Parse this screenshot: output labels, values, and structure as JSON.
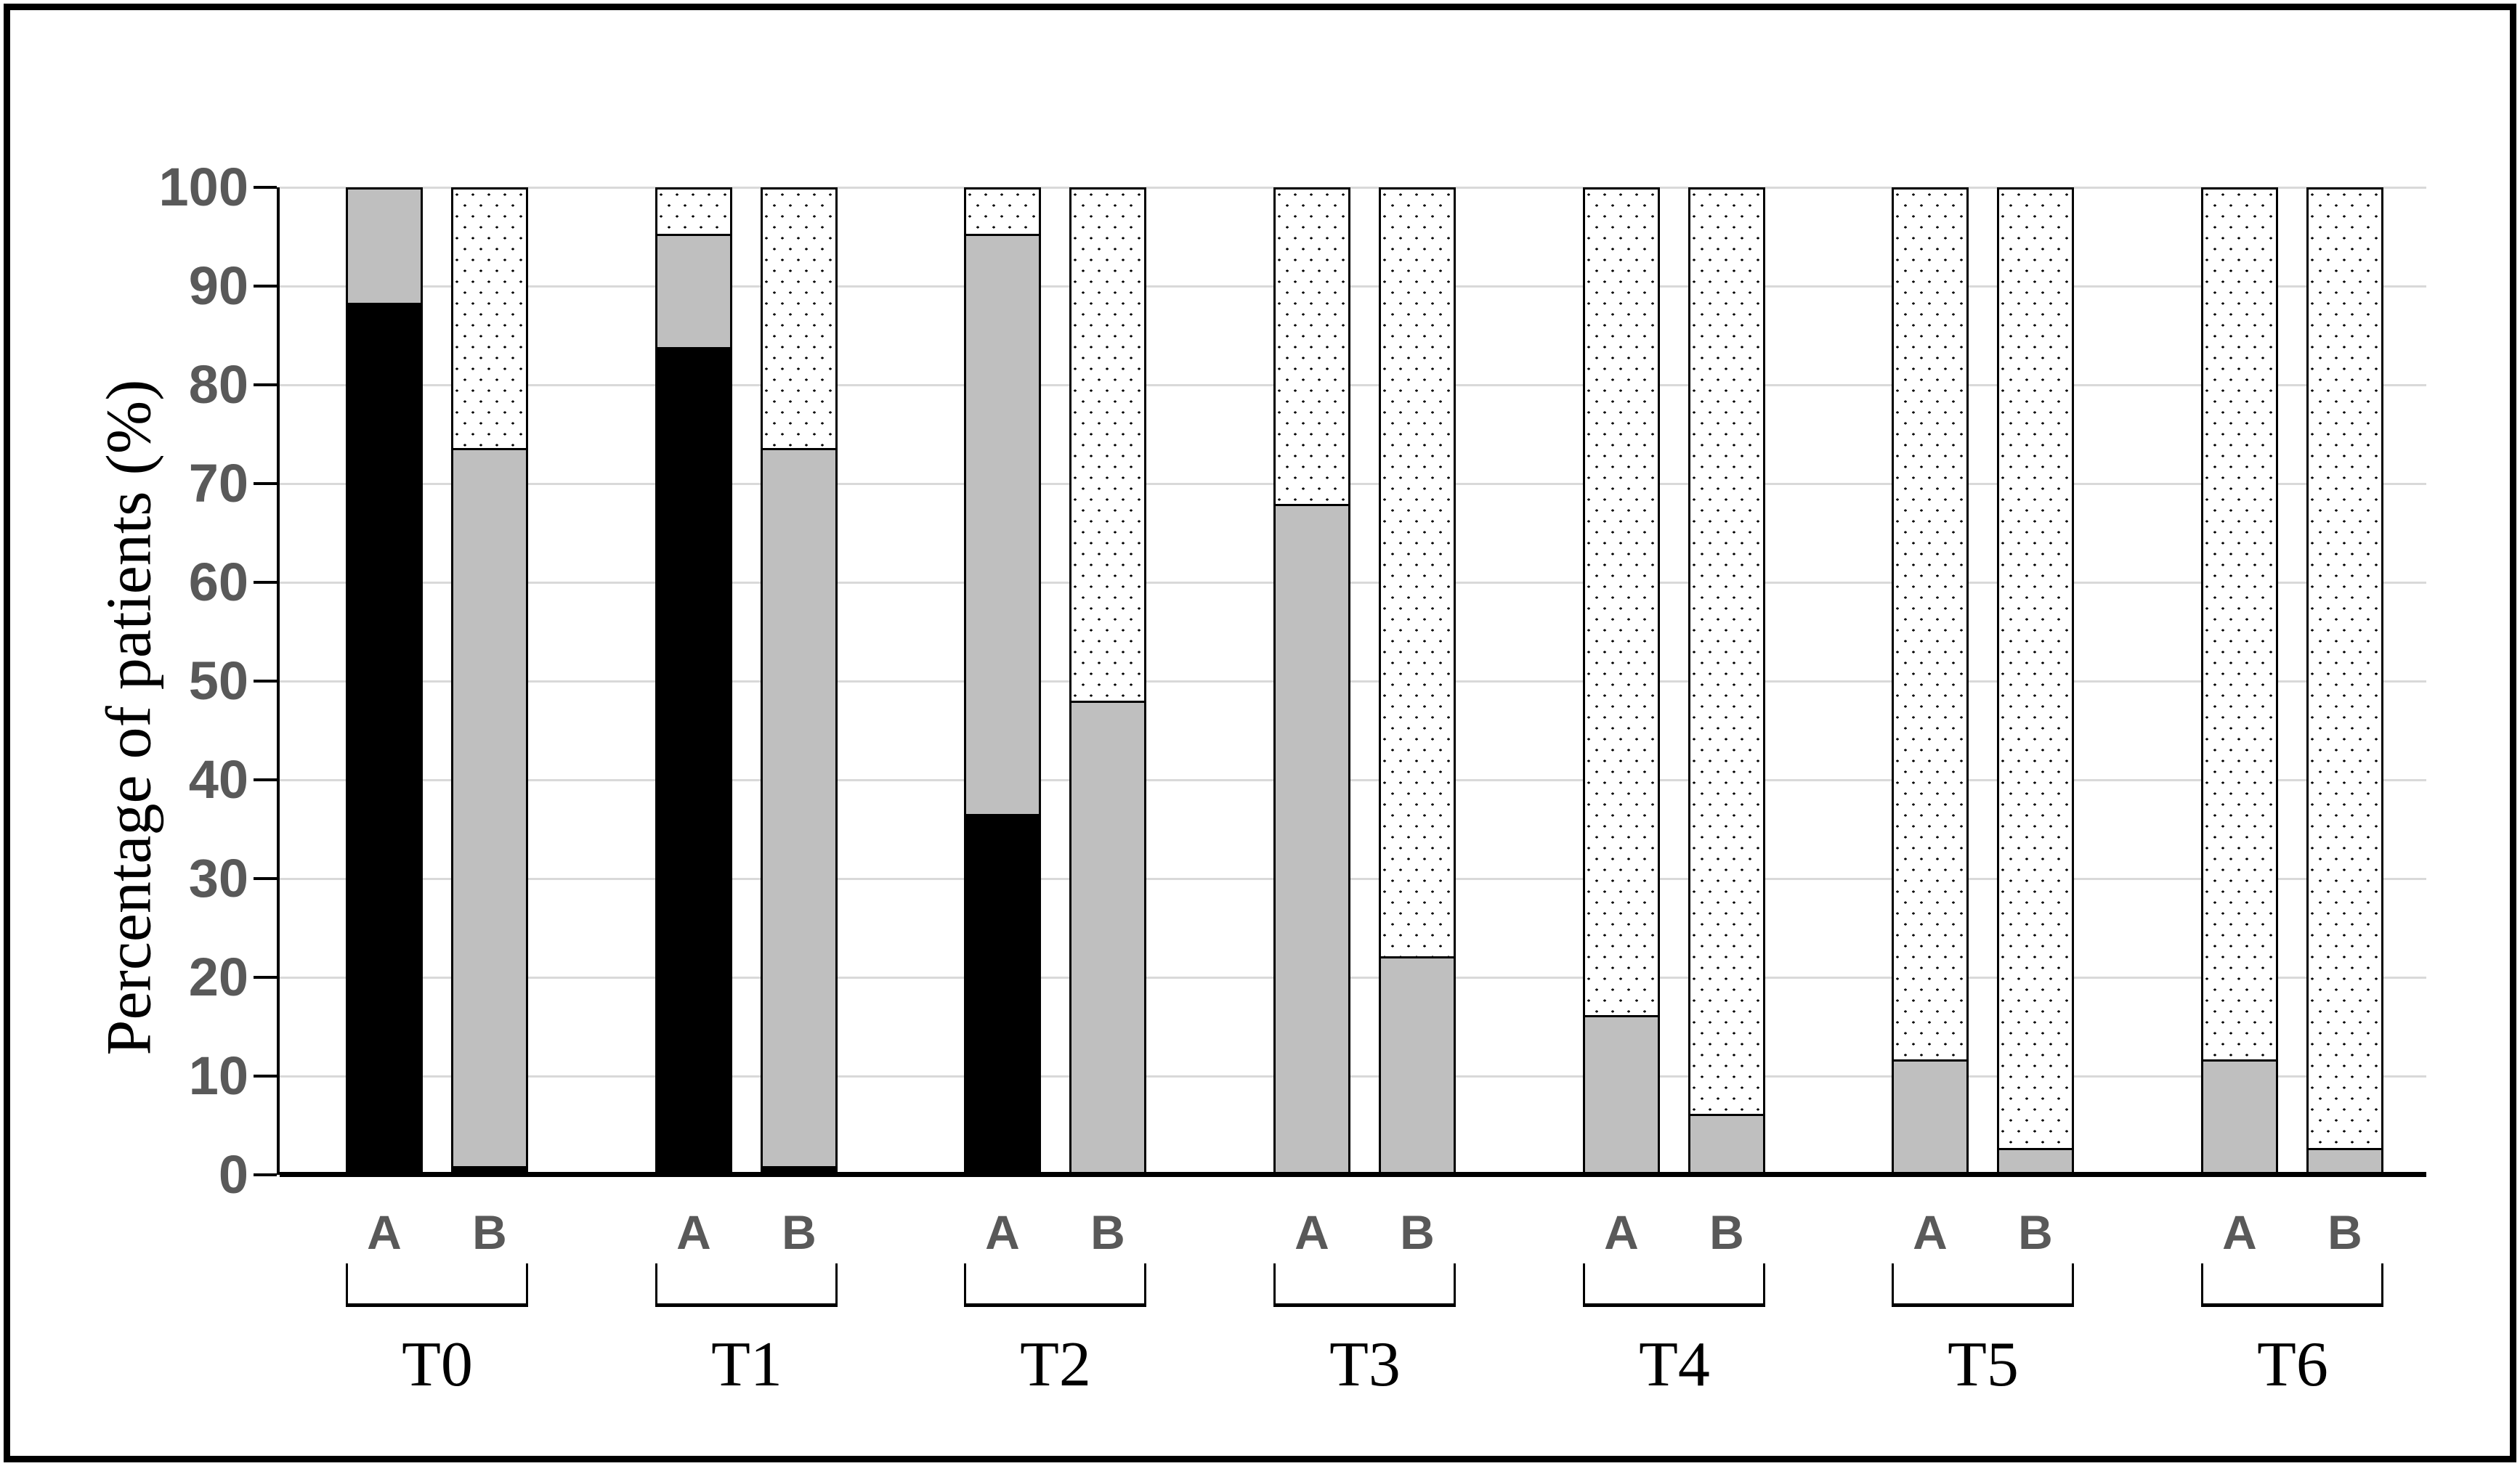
{
  "figure": {
    "background": "#ffffff",
    "border_color": "#000000"
  },
  "y_axis": {
    "title": "Percentage of patients (%)",
    "tick_labels": [
      "0",
      "10",
      "20",
      "30",
      "40",
      "50",
      "60",
      "70",
      "80",
      "90",
      "100"
    ],
    "tick_label_color": "#595959"
  },
  "x_axis": {
    "group_labels": [
      "T0",
      "T1",
      "T2",
      "T3",
      "T4",
      "T5",
      "T6"
    ],
    "bar_labels": [
      "A",
      "B"
    ],
    "bar_label_color": "#595959",
    "group_label_color": "#000000"
  },
  "colors": {
    "black_fill": "#000000",
    "grey_fill": "#bfbfbf",
    "dotted_background": "#ffffff",
    "dotted_dot": "#000000",
    "gridline": "#d9d9d9",
    "axis_line": "#000000"
  },
  "chart_data": {
    "type": "bar",
    "stacked": true,
    "orientation": "vertical",
    "title": "",
    "xlabel": "",
    "ylabel": "Percentage of patients (%)",
    "ylim": [
      0,
      100
    ],
    "ytick_step": 10,
    "grid": "horizontal",
    "legend": "none",
    "categories": [
      "T0",
      "T1",
      "T2",
      "T3",
      "T4",
      "T5",
      "T6"
    ],
    "subcategories": [
      "A",
      "B"
    ],
    "segment_order_bottom_to_top": [
      "black",
      "grey",
      "dotted"
    ],
    "segment_styles": {
      "black": "solid black fill",
      "grey": "solid grey fill (#bfbfbf)",
      "dotted": "white fill with black dot pattern"
    },
    "values": {
      "T0": {
        "A": {
          "black": 88.5,
          "grey": 11.5,
          "dotted": 0
        },
        "B": {
          "black": 0.7,
          "grey": 73.0,
          "dotted": 26.3
        }
      },
      "T1": {
        "A": {
          "black": 84.0,
          "grey": 11.5,
          "dotted": 4.5
        },
        "B": {
          "black": 0.7,
          "grey": 73.0,
          "dotted": 26.3
        }
      },
      "T2": {
        "A": {
          "black": 36.5,
          "grey": 59.0,
          "dotted": 4.5
        },
        "B": {
          "black": 0,
          "grey": 48.0,
          "dotted": 52.0
        }
      },
      "T3": {
        "A": {
          "black": 0,
          "grey": 68.0,
          "dotted": 32.0
        },
        "B": {
          "black": 0,
          "grey": 22.0,
          "dotted": 78.0
        }
      },
      "T4": {
        "A": {
          "black": 0,
          "grey": 16.0,
          "dotted": 84.0
        },
        "B": {
          "black": 0,
          "grey": 6.0,
          "dotted": 94.0
        }
      },
      "T5": {
        "A": {
          "black": 0,
          "grey": 11.5,
          "dotted": 88.5
        },
        "B": {
          "black": 0,
          "grey": 2.5,
          "dotted": 97.5
        }
      },
      "T6": {
        "A": {
          "black": 0,
          "grey": 11.5,
          "dotted": 88.5
        },
        "B": {
          "black": 0,
          "grey": 2.5,
          "dotted": 97.5
        }
      }
    }
  }
}
